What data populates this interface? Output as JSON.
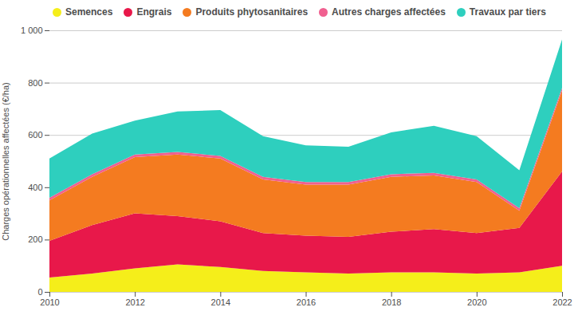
{
  "chart_data": {
    "type": "area",
    "stacked": true,
    "ylabel": "Charges opérationnelles affectées (€/ha)",
    "x": [
      2010,
      2011,
      2012,
      2013,
      2014,
      2015,
      2016,
      2017,
      2018,
      2019,
      2020,
      2021,
      2022
    ],
    "series": [
      {
        "name": "Semences",
        "color": "#F5EE1A",
        "values": [
          55,
          70,
          90,
          105,
          95,
          80,
          75,
          70,
          75,
          75,
          70,
          75,
          100
        ]
      },
      {
        "name": "Engrais",
        "color": "#E8184A",
        "values": [
          140,
          185,
          210,
          185,
          175,
          145,
          140,
          140,
          155,
          165,
          155,
          170,
          360
        ]
      },
      {
        "name": "Produits phytosanitaires",
        "color": "#F47B20",
        "values": [
          155,
          185,
          215,
          235,
          240,
          205,
          195,
          200,
          210,
          205,
          195,
          65,
          310
        ]
      },
      {
        "name": "Autres charges affectées",
        "color": "#F06090",
        "values": [
          10,
          10,
          10,
          10,
          10,
          10,
          10,
          10,
          10,
          10,
          10,
          10,
          10
        ]
      },
      {
        "name": "Travaux par tiers",
        "color": "#2ECFBE",
        "values": [
          150,
          155,
          130,
          155,
          175,
          155,
          140,
          135,
          160,
          180,
          165,
          145,
          185
        ]
      }
    ],
    "xlim": [
      2010,
      2022
    ],
    "xticks": [
      2010,
      2012,
      2014,
      2016,
      2018,
      2020,
      2022
    ],
    "ylim": [
      0,
      1000
    ],
    "yticks": [
      0,
      200,
      400,
      600,
      800,
      {
        "value": 1000,
        "label": "1 000"
      }
    ],
    "grid": true,
    "legend": "upper left"
  }
}
